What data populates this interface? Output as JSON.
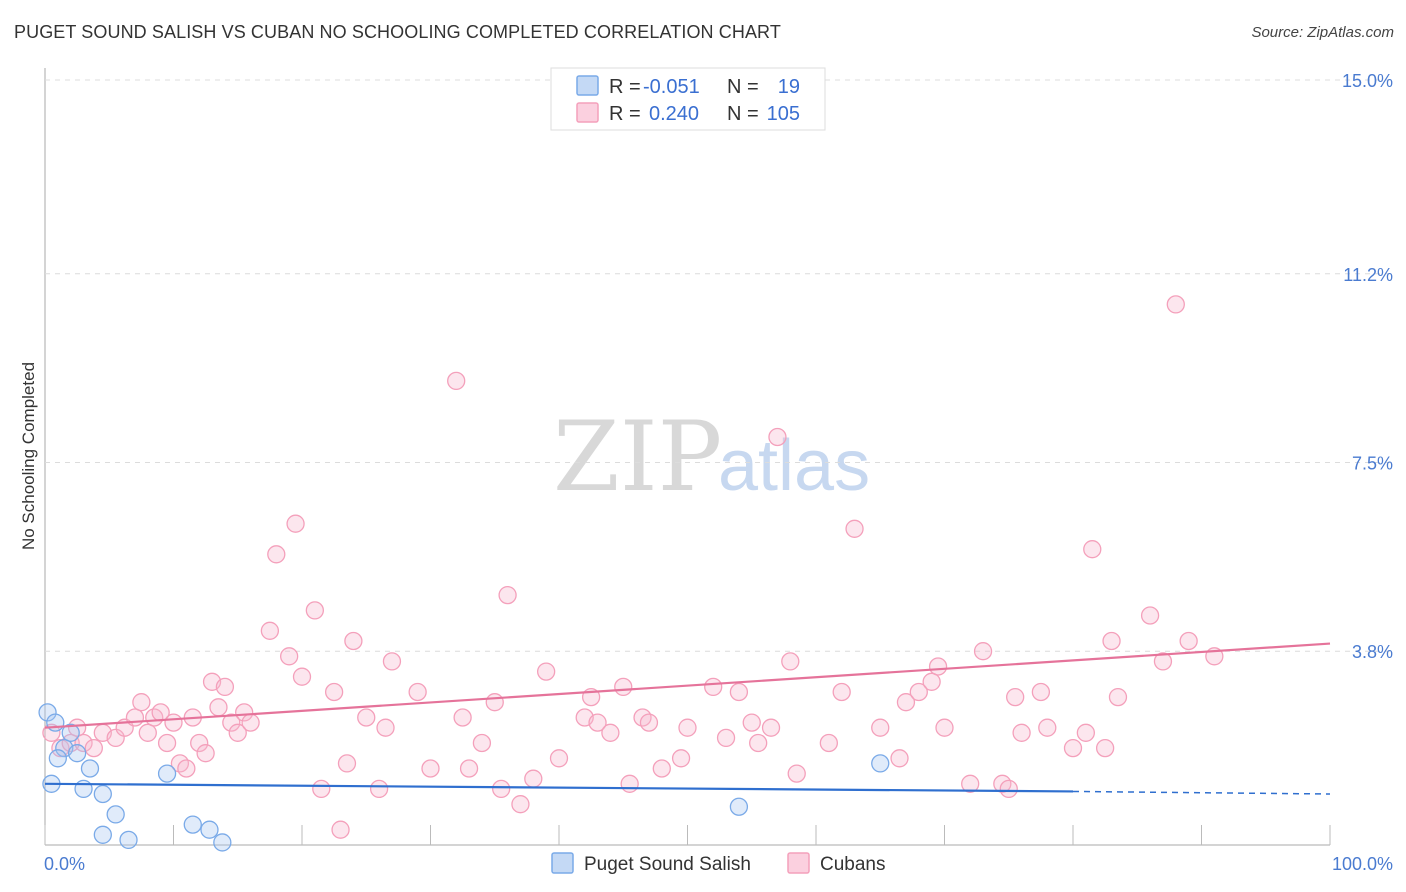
{
  "header": {
    "title": "PUGET SOUND SALISH VS CUBAN NO SCHOOLING COMPLETED CORRELATION CHART",
    "source": "Source: ZipAtlas.com"
  },
  "legend_box": {
    "rows": [
      {
        "r_label": "R =",
        "r_value": "-0.051",
        "n_label": "N =",
        "n_value": "19",
        "color": "#7aaae8"
      },
      {
        "r_label": "R =",
        "r_value": "0.240",
        "n_label": "N =",
        "n_value": "105",
        "color": "#f4a0bb"
      }
    ]
  },
  "watermark": {
    "zip": "ZIP",
    "atlas": "atlas"
  },
  "chart_data": {
    "type": "scatter",
    "title": "PUGET SOUND SALISH VS CUBAN NO SCHOOLING COMPLETED CORRELATION CHART",
    "ylabel": "No Schooling Completed",
    "xlabel": "",
    "xlim": [
      0,
      100
    ],
    "ylim": [
      0,
      15
    ],
    "x_tick_labels": [
      "0.0%",
      "100.0%"
    ],
    "y_ticks": [
      3.8,
      7.5,
      11.2,
      15.0
    ],
    "y_tick_labels": [
      "3.8%",
      "7.5%",
      "11.2%",
      "15.0%"
    ],
    "grid": "horizontal dashed",
    "legend_position": "bottom-center",
    "series": [
      {
        "name": "Puget Sound Salish",
        "color": "#7aaae8",
        "line_color": "#2f6fcf",
        "trend": {
          "x0": 0,
          "y0": 1.2,
          "x1": 80,
          "y1": 1.05,
          "dashed_to_x": 100,
          "dashed_to_y": 1.0
        },
        "points": [
          [
            0.2,
            2.6
          ],
          [
            1.5,
            1.9
          ],
          [
            2.0,
            2.2
          ],
          [
            2.5,
            1.8
          ],
          [
            0.5,
            1.2
          ],
          [
            3.0,
            1.1
          ],
          [
            4.5,
            1.0
          ],
          [
            1.0,
            1.7
          ],
          [
            3.5,
            1.5
          ],
          [
            0.8,
            2.4
          ],
          [
            5.5,
            0.6
          ],
          [
            9.5,
            1.4
          ],
          [
            11.5,
            0.4
          ],
          [
            12.8,
            0.3
          ],
          [
            4.5,
            0.2
          ],
          [
            6.5,
            0.1
          ],
          [
            13.8,
            0.05
          ],
          [
            54.0,
            0.75
          ],
          [
            65.0,
            1.6
          ]
        ]
      },
      {
        "name": "Cubans",
        "color": "#f4a0bb",
        "line_color": "#e5739a",
        "trend": {
          "x0": 0,
          "y0": 2.3,
          "x1": 100,
          "y1": 3.95
        },
        "points": [
          [
            0.5,
            2.2
          ],
          [
            1.2,
            1.9
          ],
          [
            2.0,
            2.0
          ],
          [
            2.5,
            2.3
          ],
          [
            3.0,
            2.0
          ],
          [
            3.8,
            1.9
          ],
          [
            4.5,
            2.2
          ],
          [
            5.5,
            2.1
          ],
          [
            6.2,
            2.3
          ],
          [
            7.0,
            2.5
          ],
          [
            7.5,
            2.8
          ],
          [
            8.0,
            2.2
          ],
          [
            8.5,
            2.5
          ],
          [
            9.0,
            2.6
          ],
          [
            9.5,
            2.0
          ],
          [
            10.0,
            2.4
          ],
          [
            10.5,
            1.6
          ],
          [
            11.0,
            1.5
          ],
          [
            11.5,
            2.5
          ],
          [
            12.0,
            2.0
          ],
          [
            12.5,
            1.8
          ],
          [
            13.0,
            3.2
          ],
          [
            13.5,
            2.7
          ],
          [
            14.0,
            3.1
          ],
          [
            14.5,
            2.4
          ],
          [
            15.0,
            2.2
          ],
          [
            15.5,
            2.6
          ],
          [
            16.0,
            2.4
          ],
          [
            17.5,
            4.2
          ],
          [
            18.0,
            5.7
          ],
          [
            19.0,
            3.7
          ],
          [
            19.5,
            6.3
          ],
          [
            20.0,
            3.3
          ],
          [
            21.0,
            4.6
          ],
          [
            21.5,
            1.1
          ],
          [
            22.5,
            3.0
          ],
          [
            23.0,
            0.3
          ],
          [
            23.5,
            1.6
          ],
          [
            24.0,
            4.0
          ],
          [
            25.0,
            2.5
          ],
          [
            26.0,
            1.1
          ],
          [
            26.5,
            2.3
          ],
          [
            27.0,
            3.6
          ],
          [
            29.0,
            3.0
          ],
          [
            30.0,
            1.5
          ],
          [
            32.0,
            9.1
          ],
          [
            32.5,
            2.5
          ],
          [
            33.0,
            1.5
          ],
          [
            34.0,
            2.0
          ],
          [
            35.0,
            2.8
          ],
          [
            35.5,
            1.1
          ],
          [
            36.0,
            4.9
          ],
          [
            37.0,
            0.8
          ],
          [
            38.0,
            1.3
          ],
          [
            39.0,
            3.4
          ],
          [
            40.0,
            1.7
          ],
          [
            42.0,
            2.5
          ],
          [
            42.5,
            2.9
          ],
          [
            43.0,
            2.4
          ],
          [
            44.0,
            2.2
          ],
          [
            45.0,
            3.1
          ],
          [
            45.5,
            1.2
          ],
          [
            46.5,
            2.5
          ],
          [
            47.0,
            2.4
          ],
          [
            48.0,
            1.5
          ],
          [
            49.5,
            1.7
          ],
          [
            52.0,
            3.1
          ],
          [
            53.0,
            2.1
          ],
          [
            54.0,
            3.0
          ],
          [
            55.0,
            2.4
          ],
          [
            55.5,
            2.0
          ],
          [
            56.5,
            2.3
          ],
          [
            57.0,
            8.0
          ],
          [
            58.0,
            3.6
          ],
          [
            58.5,
            1.4
          ],
          [
            62.0,
            3.0
          ],
          [
            63.0,
            6.2
          ],
          [
            65.0,
            2.3
          ],
          [
            66.5,
            1.7
          ],
          [
            67.0,
            2.8
          ],
          [
            68.0,
            3.0
          ],
          [
            69.0,
            3.2
          ],
          [
            69.5,
            3.5
          ],
          [
            70.0,
            2.3
          ],
          [
            72.0,
            1.2
          ],
          [
            73.0,
            3.8
          ],
          [
            74.5,
            1.2
          ],
          [
            75.5,
            2.9
          ],
          [
            76.0,
            2.2
          ],
          [
            77.5,
            3.0
          ],
          [
            78.0,
            2.3
          ],
          [
            80.0,
            1.9
          ],
          [
            81.0,
            2.2
          ],
          [
            81.5,
            5.8
          ],
          [
            82.5,
            1.9
          ],
          [
            83.0,
            4.0
          ],
          [
            83.5,
            2.9
          ],
          [
            86.0,
            4.5
          ],
          [
            87.0,
            3.6
          ],
          [
            88.0,
            10.6
          ],
          [
            89.0,
            4.0
          ],
          [
            91.0,
            3.7
          ],
          [
            75.0,
            1.1
          ],
          [
            61.0,
            2.0
          ],
          [
            50.0,
            2.3
          ]
        ]
      }
    ]
  }
}
